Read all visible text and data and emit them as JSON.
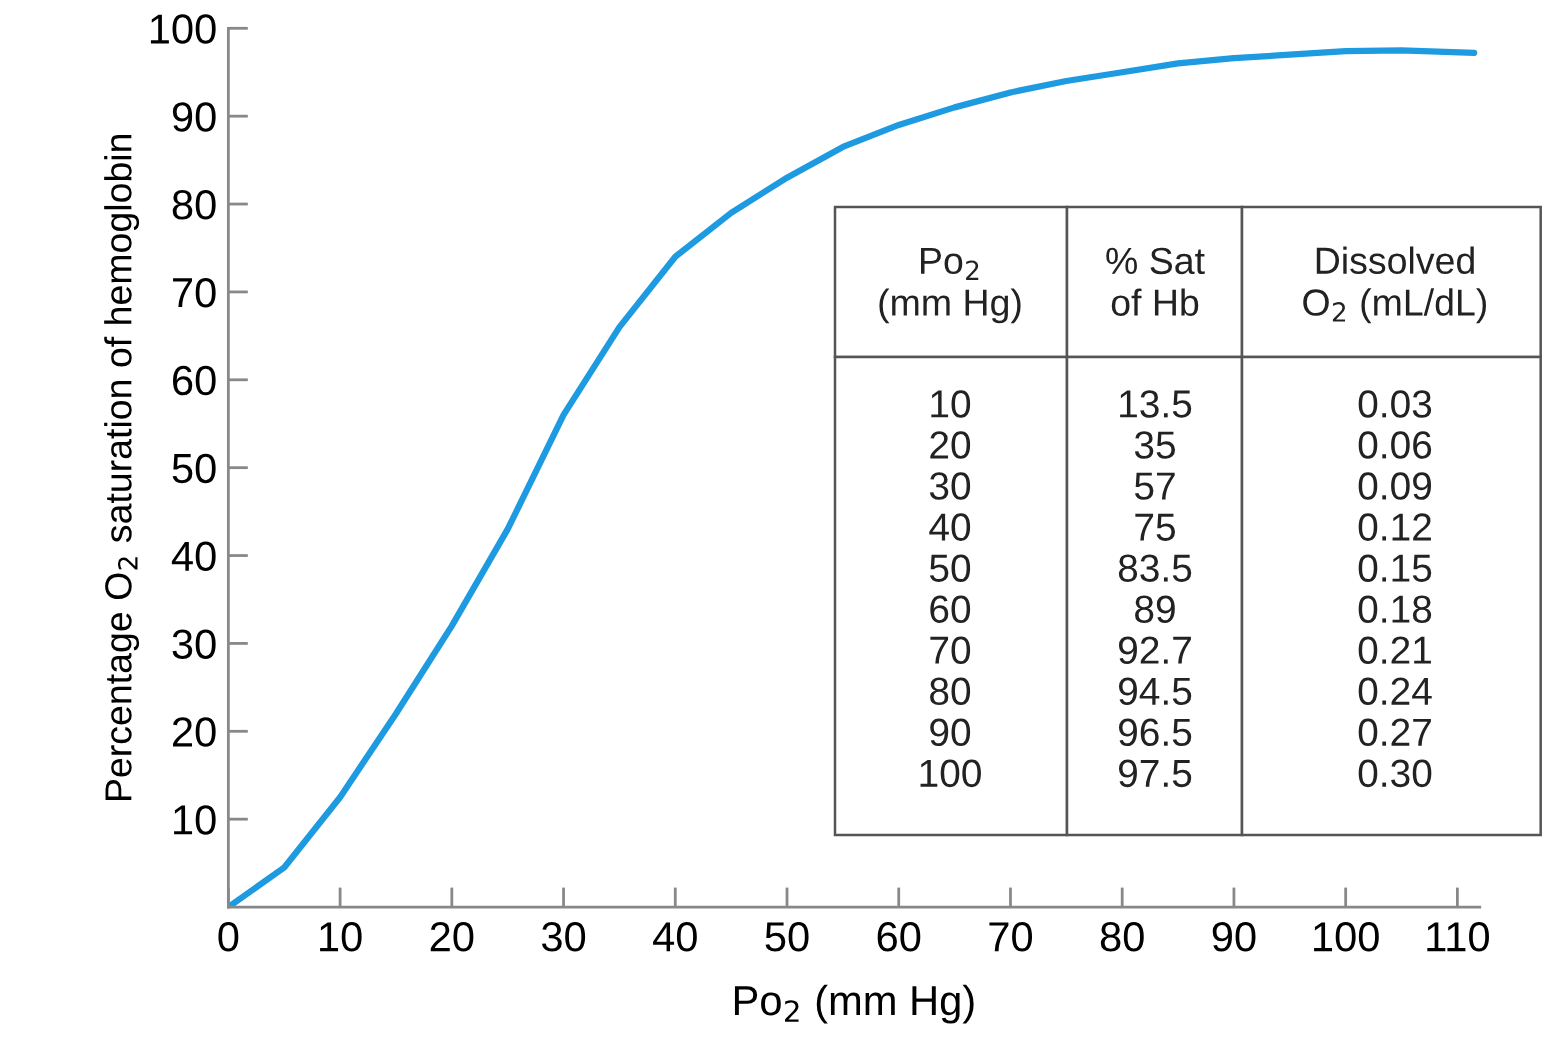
{
  "chart_data": {
    "type": "line",
    "xlabel": "Po$_{2}$ (mm Hg)",
    "ylabel": "Percentage O$_{2}$ saturation of hemoglobin",
    "x": [
      0,
      5,
      10,
      15,
      20,
      25,
      30,
      35,
      40,
      45,
      50,
      55,
      60,
      65,
      70,
      75,
      80,
      85,
      90,
      95,
      100,
      105,
      111.5
    ],
    "series": [
      {
        "color": "#1e9be0",
        "values": [
          0,
          4.5,
          12.5,
          22,
          32,
          43,
          56,
          66,
          74,
          79,
          83,
          86.5,
          89,
          91,
          92.7,
          94,
          95,
          96,
          96.6,
          97,
          97.4,
          97.5,
          97.2
        ]
      }
    ],
    "xlim": [
      0,
      112
    ],
    "xticks": [
      0,
      10,
      20,
      30,
      40,
      50,
      60,
      70,
      80,
      90,
      100,
      110
    ],
    "ylim": [
      0,
      100
    ],
    "yticks": [
      10,
      20,
      30,
      40,
      50,
      60,
      70,
      80,
      90,
      100
    ],
    "grid": false,
    "legend": false,
    "marker": "none",
    "line_style": "solid",
    "annotations": [
      "Po$_{2}$\n(mm Hg)",
      "% Sat\nof Hb",
      "Dissolved\nO$_{2}$ (mL/dL)",
      "10\n20\n30\n40\n50\n60\n70\n80\n90\n100",
      "13.5\n35\n57\n75\n83.5\n89\n92.7\n94.5\n96.5\n97.5",
      "0.03\n0.06\n0.09\n0.12\n0.15\n0.18\n0.21\n0.24\n0.27\n0.30"
    ]
  }
}
